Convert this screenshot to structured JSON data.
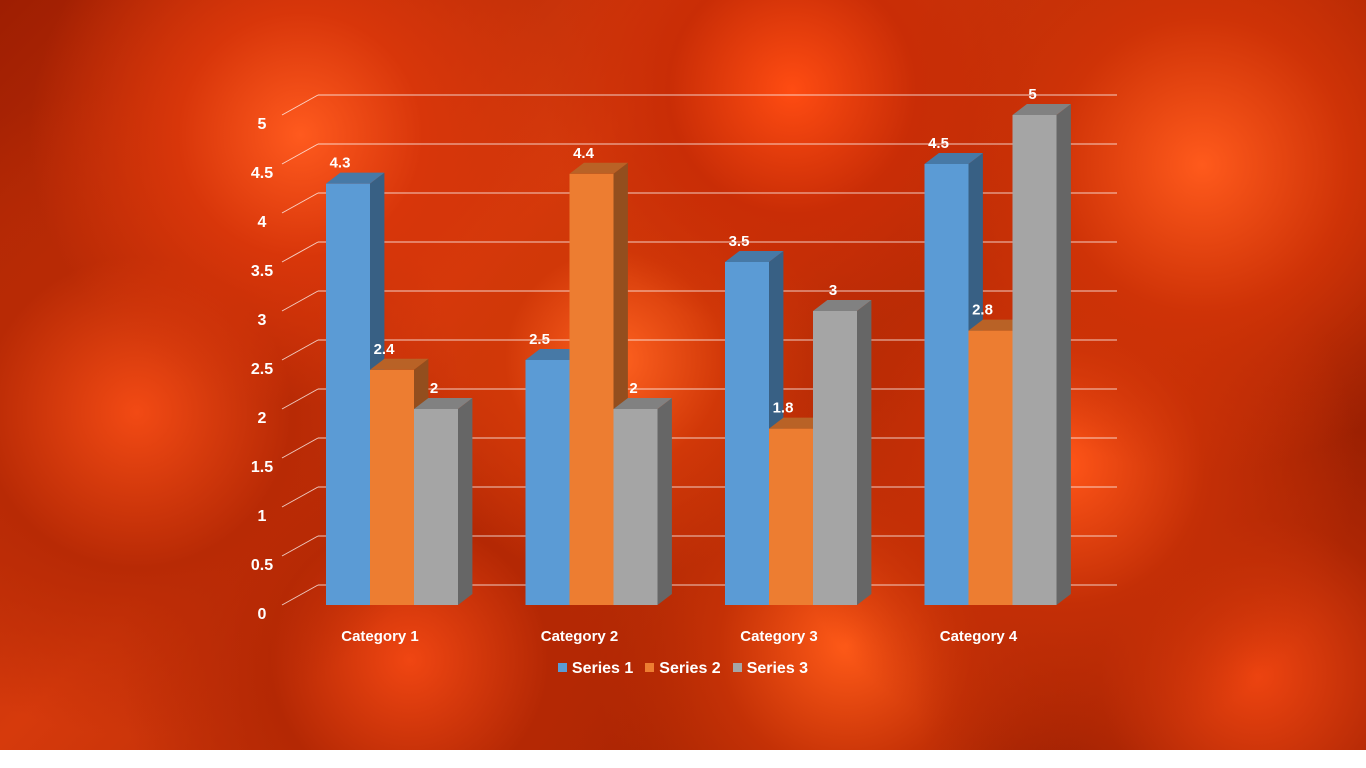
{
  "chart_data": {
    "type": "bar",
    "title": "",
    "categories": [
      "Category 1",
      "Category 2",
      "Category 3",
      "Category 4"
    ],
    "series": [
      {
        "name": "Series 1",
        "color": "#5b9bd5",
        "values": [
          4.3,
          2.5,
          3.5,
          4.5
        ]
      },
      {
        "name": "Series 2",
        "color": "#ed7d31",
        "values": [
          2.4,
          4.4,
          1.8,
          2.8
        ]
      },
      {
        "name": "Series 3",
        "color": "#a5a5a5",
        "values": [
          2,
          2,
          3,
          5
        ]
      }
    ],
    "ylim": [
      0,
      5
    ],
    "yticks": [
      "0",
      "0.5",
      "1",
      "1.5",
      "2",
      "2.5",
      "3",
      "3.5",
      "4",
      "4.5",
      "5"
    ],
    "grid": true,
    "style": "3d-clustered-column",
    "legend_position": "bottom",
    "data_labels": true
  }
}
